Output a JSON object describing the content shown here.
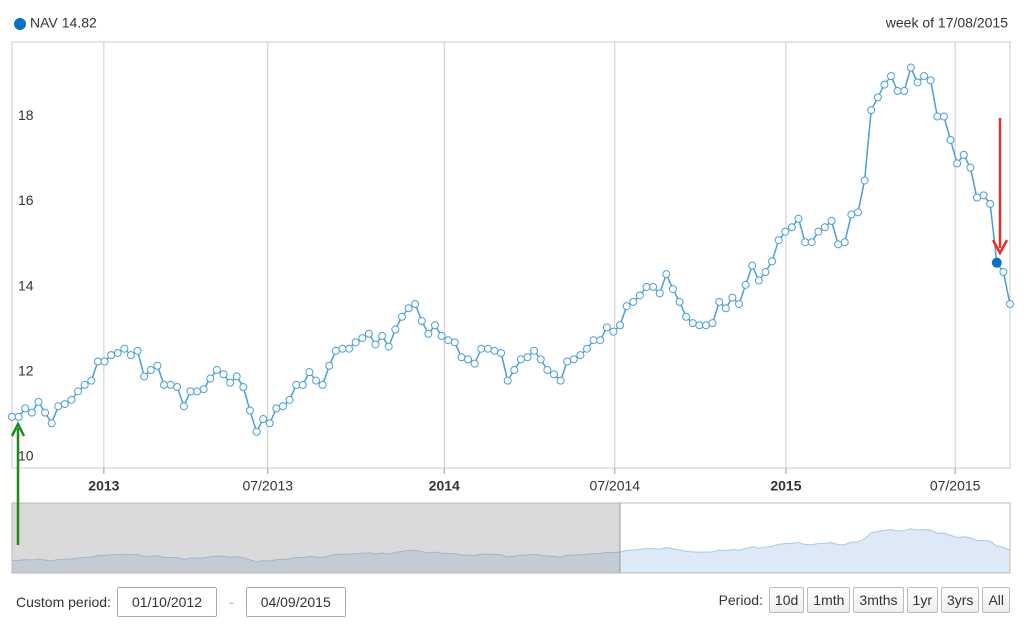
{
  "chart_data": {
    "type": "line",
    "legend": {
      "name": "NAV",
      "value": 14.82
    },
    "week_label": "week of 17/08/2015",
    "series": [
      {
        "name": "NAV",
        "color": "#4a9fd4",
        "values": [
          11.2,
          11.2,
          11.4,
          11.3,
          11.55,
          11.3,
          11.05,
          11.45,
          11.5,
          11.6,
          11.8,
          11.95,
          12.05,
          12.5,
          12.5,
          12.65,
          12.7,
          12.8,
          12.65,
          12.75,
          12.15,
          12.3,
          12.4,
          11.95,
          11.95,
          11.9,
          11.45,
          11.8,
          11.8,
          11.85,
          12.1,
          12.3,
          12.2,
          12.0,
          12.15,
          11.9,
          11.35,
          10.85,
          11.15,
          11.05,
          11.4,
          11.45,
          11.6,
          11.95,
          11.95,
          12.25,
          12.05,
          11.95,
          12.4,
          12.75,
          12.8,
          12.8,
          12.95,
          13.05,
          13.15,
          12.9,
          13.1,
          12.85,
          13.25,
          13.55,
          13.75,
          13.85,
          13.45,
          13.15,
          13.35,
          13.1,
          13.0,
          12.95,
          12.6,
          12.55,
          12.45,
          12.8,
          12.8,
          12.75,
          12.7,
          12.05,
          12.3,
          12.55,
          12.6,
          12.75,
          12.55,
          12.3,
          12.2,
          12.05,
          12.5,
          12.55,
          12.65,
          12.8,
          13.0,
          13.0,
          13.3,
          13.2,
          13.35,
          13.8,
          13.9,
          14.05,
          14.25,
          14.25,
          14.1,
          14.55,
          14.2,
          13.9,
          13.55,
          13.4,
          13.35,
          13.35,
          13.4,
          13.9,
          13.75,
          14.0,
          13.85,
          14.3,
          14.75,
          14.4,
          14.6,
          14.85,
          15.35,
          15.55,
          15.65,
          15.85,
          15.3,
          15.3,
          15.55,
          15.65,
          15.8,
          15.25,
          15.3,
          15.95,
          16.0,
          16.75,
          18.4,
          18.7,
          19.0,
          19.2,
          18.85,
          18.85,
          19.4,
          19.05,
          19.2,
          19.1,
          18.25,
          18.25,
          17.7,
          17.15,
          17.35,
          17.05,
          16.35,
          16.4,
          16.2,
          14.82,
          14.6,
          13.85
        ]
      }
    ],
    "xlim": [
      0,
      151
    ],
    "xticks": [
      {
        "value": 13.9,
        "label": "2013"
      },
      {
        "value": 38.7,
        "label": "07/2013"
      },
      {
        "value": 65.4,
        "label": "2014"
      },
      {
        "value": 91.2,
        "label": "07/2014"
      },
      {
        "value": 117.1,
        "label": "2015"
      },
      {
        "value": 142.7,
        "label": "07/2015"
      }
    ],
    "ylim": [
      10,
      20
    ],
    "yticks": [
      10,
      12,
      14,
      16,
      18
    ],
    "grid": true
  },
  "controls": {
    "custom_label": "Custom period:",
    "from": "01/10/2012",
    "separator": "-",
    "to": "04/09/2015",
    "period_label": "Period:",
    "buttons": [
      "10d",
      "1mth",
      "3mths",
      "1yr",
      "3yrs",
      "All"
    ]
  }
}
